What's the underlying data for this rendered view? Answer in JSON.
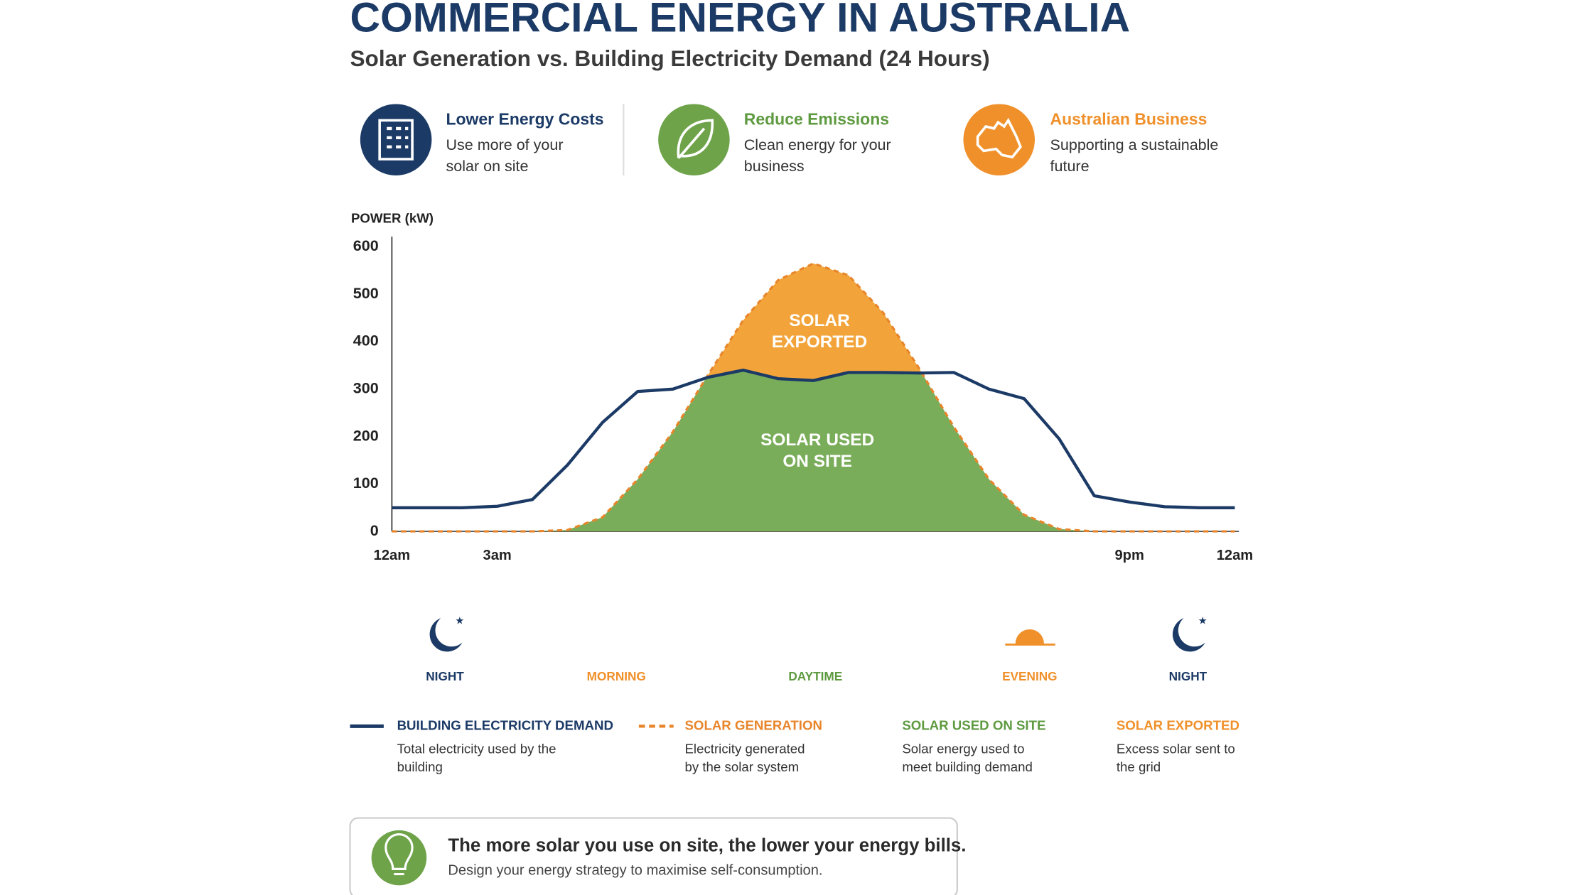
{
  "header": {
    "title": "COMMERCIAL ENERGY IN AUSTRALIA",
    "subtitle": "Solar Generation vs. Building Electricity Demand (24 Hours)"
  },
  "features": [
    {
      "title": "Lower Energy Costs",
      "lines": [
        "Use more of your",
        "solar on site"
      ],
      "color": "#1b3a66"
    },
    {
      "title": "Reduce Emissions",
      "lines": [
        "Clean energy for your",
        "business"
      ],
      "color": "#5e9a40"
    },
    {
      "title": "Australian Business",
      "lines": [
        "Supporting a sustainable",
        "future"
      ],
      "color": "#f0902a"
    }
  ],
  "chart_data": {
    "type": "area",
    "y_label": "POWER (kW)",
    "x": [
      0,
      1,
      2,
      3,
      4,
      5,
      6,
      7,
      8,
      9,
      10,
      11,
      12,
      13,
      14,
      15,
      16,
      17,
      18,
      19,
      20,
      21,
      22,
      23,
      24
    ],
    "xlim": [
      0,
      24
    ],
    "xticks": [
      {
        "value": 0,
        "label": "12am"
      },
      {
        "value": 3,
        "label": "3am"
      },
      {
        "value": 21,
        "label": "9pm"
      },
      {
        "value": 24,
        "label": "12am"
      }
    ],
    "ylim": [
      0,
      600
    ],
    "yticks": [
      0,
      100,
      200,
      300,
      400,
      500,
      600
    ],
    "series": [
      {
        "name": "BUILDING ELECTRICITY DEMAND",
        "color": "#1b3a66",
        "values": [
          50,
          50,
          50,
          53,
          67,
          140,
          230,
          295,
          300,
          325,
          340,
          322,
          318,
          335,
          335,
          334,
          335,
          300,
          280,
          195,
          75,
          62,
          52,
          50,
          50
        ]
      },
      {
        "name": "SOLAR GENERATION",
        "color": "#e8852a",
        "values": [
          0,
          0,
          0,
          0,
          0,
          3,
          30,
          110,
          210,
          330,
          445,
          530,
          565,
          540,
          460,
          345,
          220,
          110,
          35,
          5,
          0,
          0,
          0,
          0,
          0
        ]
      }
    ],
    "areas": [
      {
        "name": "SOLAR USED ON SITE",
        "color": "#7aad5a"
      },
      {
        "name": "SOLAR EXPORTED",
        "color": "#f2a43a"
      }
    ],
    "annotations": [
      [
        "SOLAR",
        "EXPORTED"
      ],
      [
        "SOLAR USED",
        "ON SITE"
      ]
    ]
  },
  "periods": [
    {
      "label": "NIGHT",
      "color": "#1b3a66"
    },
    {
      "label": "MORNING",
      "color": "#f0902a"
    },
    {
      "label": "DAYTIME",
      "color": "#5e9a40"
    },
    {
      "label": "EVENING",
      "color": "#f0902a"
    },
    {
      "label": "NIGHT",
      "color": "#1b3a66"
    }
  ],
  "legend_descriptions": [
    [
      "Total electricity used by the",
      "building"
    ],
    [
      "Electricity generated",
      "by the solar system"
    ],
    [
      "Solar energy used to",
      "meet building demand"
    ],
    [
      "Excess solar sent to",
      "the grid"
    ]
  ],
  "tip": {
    "headline": "The more solar you use on site, the lower your energy bills.",
    "text": "Design your energy strategy to maximise self-consumption."
  }
}
